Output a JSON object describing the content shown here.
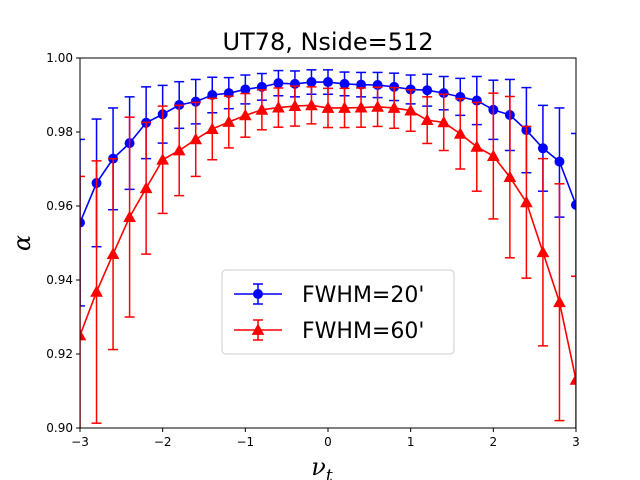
{
  "chart_data": {
    "type": "line",
    "title": "UT78, Nside=512",
    "xlabel": "ν",
    "xlabel_sub": "t",
    "ylabel": "α",
    "xlim": [
      -3,
      3
    ],
    "ylim": [
      0.9,
      1.0
    ],
    "xticks": [
      -3,
      -2,
      -1,
      0,
      1,
      2,
      3
    ],
    "xtick_labels": [
      "−3",
      "−2",
      "−1",
      "0",
      "1",
      "2",
      "3"
    ],
    "yticks": [
      0.9,
      0.92,
      0.94,
      0.96,
      0.98,
      1.0
    ],
    "ytick_labels": [
      "0.90",
      "0.92",
      "0.94",
      "0.96",
      "0.98",
      "1.00"
    ],
    "x": [
      -3.0,
      -2.8,
      -2.6,
      -2.4,
      -2.2,
      -2.0,
      -1.8,
      -1.6,
      -1.4,
      -1.2,
      -1.0,
      -0.8,
      -0.6,
      -0.4,
      -0.2,
      0.0,
      0.2,
      0.4,
      0.6,
      0.8,
      1.0,
      1.2,
      1.4,
      1.6,
      1.8,
      2.0,
      2.2,
      2.4,
      2.6,
      2.8,
      3.0
    ],
    "grid": false,
    "legend_position": "center",
    "series": [
      {
        "name": "FWHM=20'",
        "color": "#0000ff",
        "marker": "circle",
        "values": [
          0.9555,
          0.9662,
          0.9728,
          0.977,
          0.9825,
          0.9848,
          0.9873,
          0.9882,
          0.99,
          0.9905,
          0.9915,
          0.9922,
          0.9932,
          0.993,
          0.9935,
          0.9935,
          0.993,
          0.9928,
          0.9927,
          0.9922,
          0.9915,
          0.9913,
          0.9905,
          0.9895,
          0.9885,
          0.986,
          0.9846,
          0.9805,
          0.9756,
          0.972,
          0.9603
        ],
        "err_low": [
          0.933,
          0.949,
          0.959,
          0.9645,
          0.9728,
          0.977,
          0.981,
          0.9822,
          0.9852,
          0.9863,
          0.9876,
          0.9886,
          0.9898,
          0.9895,
          0.9902,
          0.9902,
          0.9898,
          0.9895,
          0.9893,
          0.9885,
          0.9876,
          0.987,
          0.986,
          0.9845,
          0.982,
          0.978,
          0.975,
          0.969,
          0.964,
          0.957,
          0.941
        ],
        "err_high": [
          0.978,
          0.9835,
          0.9865,
          0.9895,
          0.9922,
          0.9926,
          0.9936,
          0.9942,
          0.9948,
          0.9947,
          0.9954,
          0.9958,
          0.9966,
          0.9965,
          0.9968,
          0.9968,
          0.9962,
          0.9961,
          0.9961,
          0.9959,
          0.9954,
          0.9956,
          0.995,
          0.9945,
          0.995,
          0.994,
          0.9942,
          0.992,
          0.9872,
          0.9865,
          0.9796
        ]
      },
      {
        "name": "FWHM=60'",
        "color": "#ff0000",
        "marker": "triangle",
        "values": [
          0.925,
          0.9368,
          0.947,
          0.957,
          0.9648,
          0.9725,
          0.975,
          0.978,
          0.9808,
          0.9827,
          0.9845,
          0.986,
          0.9866,
          0.987,
          0.9872,
          0.9865,
          0.9865,
          0.9866,
          0.9868,
          0.9865,
          0.9858,
          0.9832,
          0.9826,
          0.9795,
          0.976,
          0.9735,
          0.9678,
          0.961,
          0.9475,
          0.934,
          0.913
        ],
        "err_low": [
          0.89,
          0.9013,
          0.9212,
          0.93,
          0.947,
          0.958,
          0.9628,
          0.968,
          0.9725,
          0.9757,
          0.9786,
          0.9806,
          0.9813,
          0.9816,
          0.9822,
          0.9812,
          0.9812,
          0.9813,
          0.9815,
          0.981,
          0.9802,
          0.9769,
          0.975,
          0.97,
          0.964,
          0.9565,
          0.946,
          0.9405,
          0.9222,
          0.902,
          0.885
        ],
        "err_high": [
          0.968,
          0.9722,
          0.9728,
          0.984,
          0.9826,
          0.987,
          0.9872,
          0.988,
          0.9891,
          0.9897,
          0.9904,
          0.9914,
          0.9919,
          0.9924,
          0.9922,
          0.9918,
          0.9918,
          0.9919,
          0.9921,
          0.992,
          0.9914,
          0.9895,
          0.9902,
          0.989,
          0.988,
          0.9905,
          0.9896,
          0.9815,
          0.9728,
          0.966,
          0.941
        ]
      }
    ]
  }
}
